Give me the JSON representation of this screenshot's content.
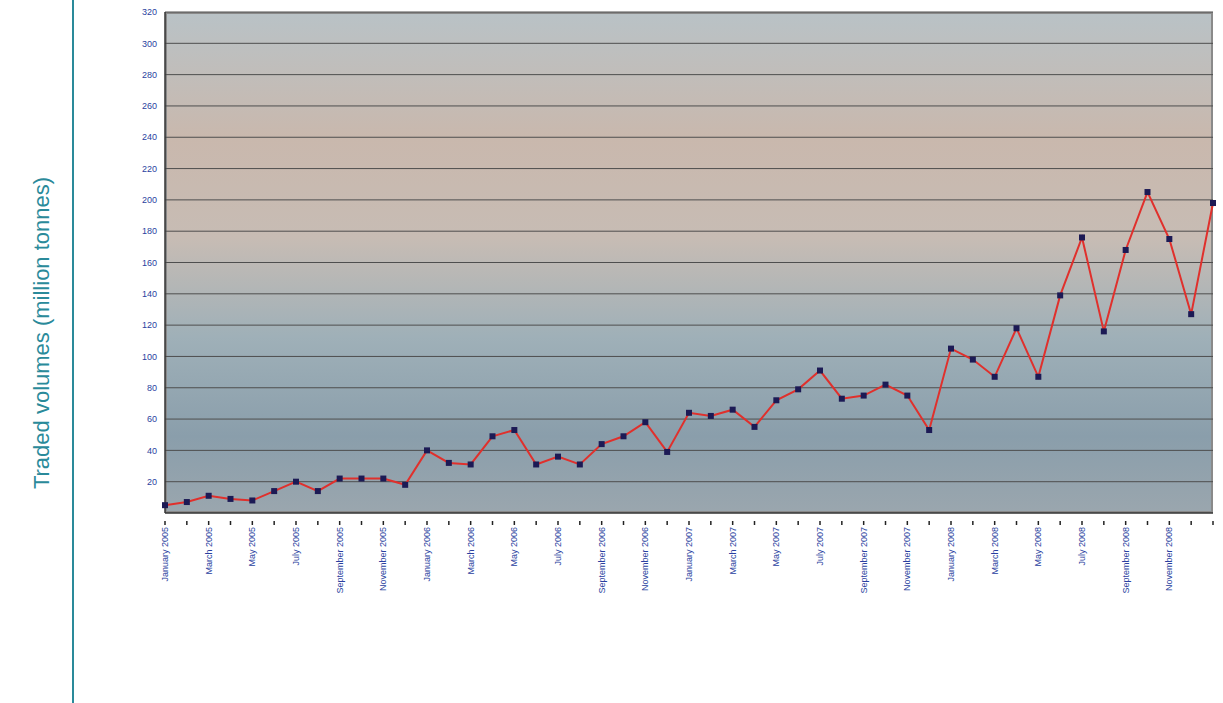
{
  "chart_data": {
    "type": "line",
    "y_label": "Traded volumes (million tonnes)",
    "categories": [
      "January 2005",
      null,
      "March 2005",
      null,
      "May 2005",
      null,
      "July 2005",
      null,
      "September 2005",
      null,
      "November 2005",
      null,
      "January 2006",
      null,
      "March 2006",
      null,
      "May 2006",
      null,
      "July 2006",
      null,
      "September 2006",
      null,
      "November 2006",
      null,
      "January 2007",
      null,
      "March 2007",
      null,
      "May 2007",
      null,
      "July 2007",
      null,
      "September 2007",
      null,
      "November 2007",
      null,
      "January 2008",
      null,
      "March 2008",
      null,
      "May 2008",
      null,
      "July 2008",
      null,
      "September 2008",
      null,
      "November 2008",
      null,
      null
    ],
    "values": [
      5,
      7,
      11,
      9,
      8,
      14,
      20,
      14,
      22,
      22,
      22,
      18,
      40,
      32,
      31,
      49,
      53,
      31,
      36,
      31,
      44,
      49,
      58,
      39,
      64,
      62,
      66,
      55,
      72,
      79,
      91,
      73,
      75,
      82,
      75,
      53,
      105,
      98,
      87,
      118,
      87,
      139,
      176,
      116,
      168,
      205,
      175,
      127,
      198
    ],
    "color": "#e0302c",
    "marker": "square",
    "line_style": "solid",
    "ylim": [
      0,
      320
    ],
    "yticks": [
      20,
      40,
      60,
      80,
      100,
      120,
      140,
      160,
      180,
      200,
      220,
      240,
      260,
      280,
      300,
      320
    ],
    "grid": true
  }
}
